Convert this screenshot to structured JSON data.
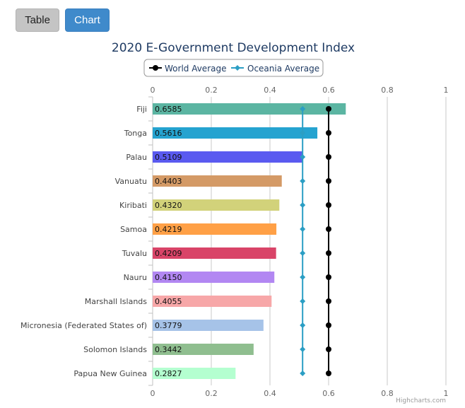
{
  "toggle": {
    "table_label": "Table",
    "chart_label": "Chart"
  },
  "chart_data": {
    "type": "bar",
    "orientation": "horizontal",
    "title": "2020 E-Government Development Index",
    "categories": [
      "Fiji",
      "Tonga",
      "Palau",
      "Vanuatu",
      "Kiribati",
      "Samoa",
      "Tuvalu",
      "Nauru",
      "Marshall Islands",
      "Micronesia (Federated States of)",
      "Solomon Islands",
      "Papua New Guinea"
    ],
    "values": [
      0.6585,
      0.5616,
      0.5109,
      0.4403,
      0.432,
      0.4219,
      0.4209,
      0.415,
      0.4055,
      0.3779,
      0.3442,
      0.2827
    ],
    "value_labels": [
      "0.6585",
      "0.5616",
      "0.5109",
      "0.4403",
      "0.4320",
      "0.4219",
      "0.4209",
      "0.4150",
      "0.4055",
      "0.3779",
      "0.3442",
      "0.2827"
    ],
    "bar_colors": [
      "#5bb5a2",
      "#25a3d0",
      "#5a5af0",
      "#d49a66",
      "#d2d27a",
      "#ffa046",
      "#d94468",
      "#b287f2",
      "#f7a7a8",
      "#a6c3e8",
      "#8fbe8f",
      "#b4ffd0"
    ],
    "series": [
      {
        "name": "World Average",
        "value": 0.6,
        "color": "#000000",
        "marker": "circle"
      },
      {
        "name": "Oceania Average",
        "value": 0.5113,
        "color": "#2b9ec4",
        "marker": "diamond"
      }
    ],
    "xlim": [
      0,
      1
    ],
    "ticks": [
      "0",
      "0.2",
      "0.4",
      "0.6",
      "0.8",
      "1"
    ],
    "grid": true,
    "legend_position": "top-center",
    "credits": "Highcharts.com"
  }
}
